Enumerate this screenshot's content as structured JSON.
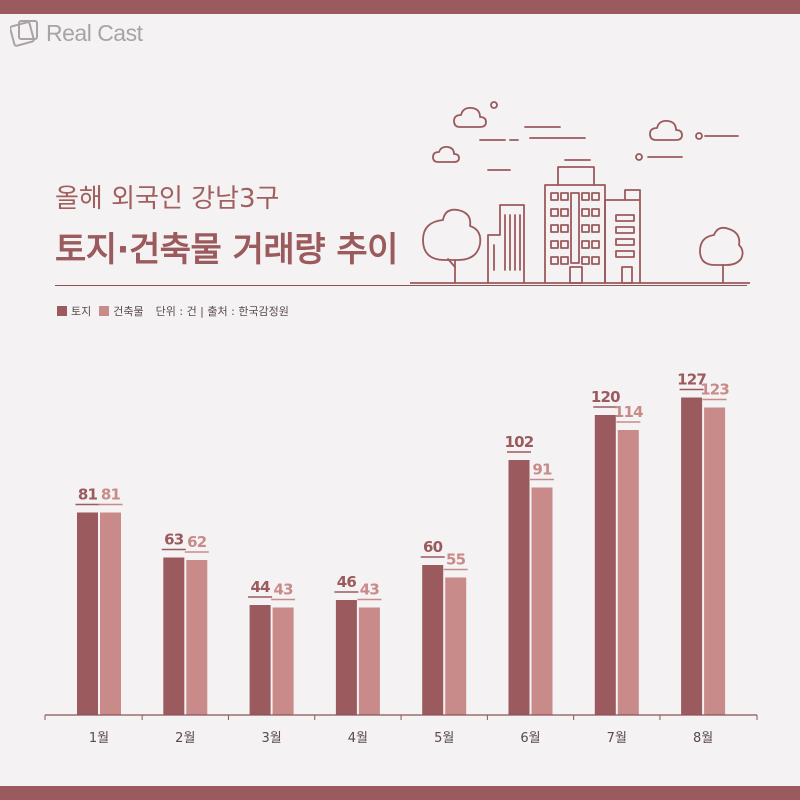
{
  "brand": {
    "logo_text": "Real Cast"
  },
  "header": {
    "subtitle": "올해 외국인 강남3구",
    "title": "토지·건축물 거래량 추이"
  },
  "legend": {
    "items": [
      {
        "label": "토지",
        "color": "#9b5a5d"
      },
      {
        "label": "건축물",
        "color": "#c98b8a"
      }
    ],
    "unit_note": "단위 : 건 | 출처 : 한국감정원"
  },
  "colors": {
    "band": "#9b5a5d",
    "land": "#9b5a5d",
    "building": "#c98b8a",
    "background": "#f4f2f2"
  },
  "chart_data": {
    "type": "bar",
    "categories": [
      "1월",
      "2월",
      "3월",
      "4월",
      "5월",
      "6월",
      "7월",
      "8월"
    ],
    "series": [
      {
        "name": "토지",
        "values": [
          81,
          63,
          44,
          46,
          60,
          102,
          120,
          127
        ]
      },
      {
        "name": "건축물",
        "values": [
          81,
          62,
          43,
          43,
          55,
          91,
          114,
          123
        ]
      }
    ],
    "ylim": [
      0,
      140
    ],
    "grid": false
  }
}
